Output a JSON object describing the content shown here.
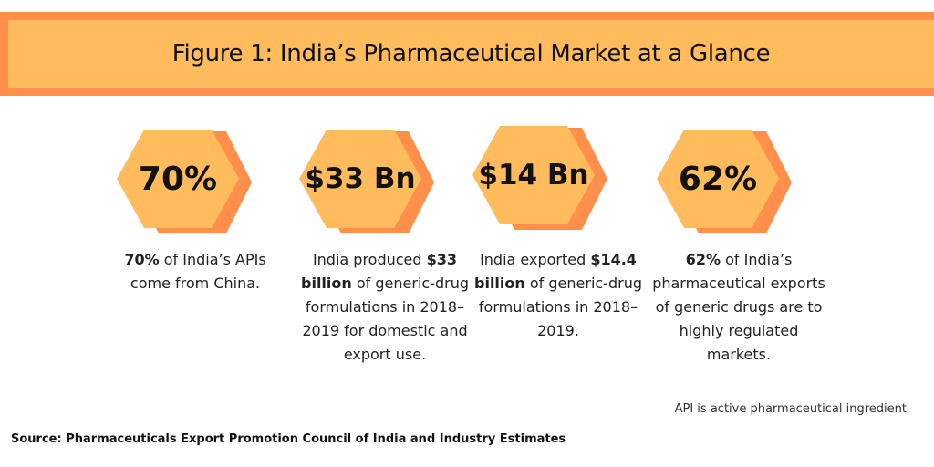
{
  "title": "Figure 1: India’s Pharmaceutical Market at a Glance",
  "colors": {
    "banner_fill": "#ffbb5c",
    "banner_border": "#ff8f4a",
    "hex_front": "#ffbb5c",
    "hex_back": "#ff8f4a"
  },
  "stats": [
    {
      "value": "70%",
      "desc_bold": "70%",
      "desc_rest": " of India’s APIs come from China."
    },
    {
      "value": "$33 Bn",
      "desc_pre": "India produced ",
      "desc_bold": "$33 billion",
      "desc_rest": " of generic-drug formulations in 2018–2019 for domestic and export use."
    },
    {
      "value": "$14 Bn",
      "desc_pre": "India exported ",
      "desc_bold": "$14.4 billion",
      "desc_rest": " of generic-drug formulations in 2018–2019."
    },
    {
      "value": "62%",
      "desc_bold": "62%",
      "desc_rest": " of India’s pharmaceutical exports of generic drugs are to highly regulated markets."
    }
  ],
  "note": "API is active pharmaceutical ingredient",
  "source": "Source: Pharmaceuticals Export Promotion Council of India and Industry Estimates"
}
